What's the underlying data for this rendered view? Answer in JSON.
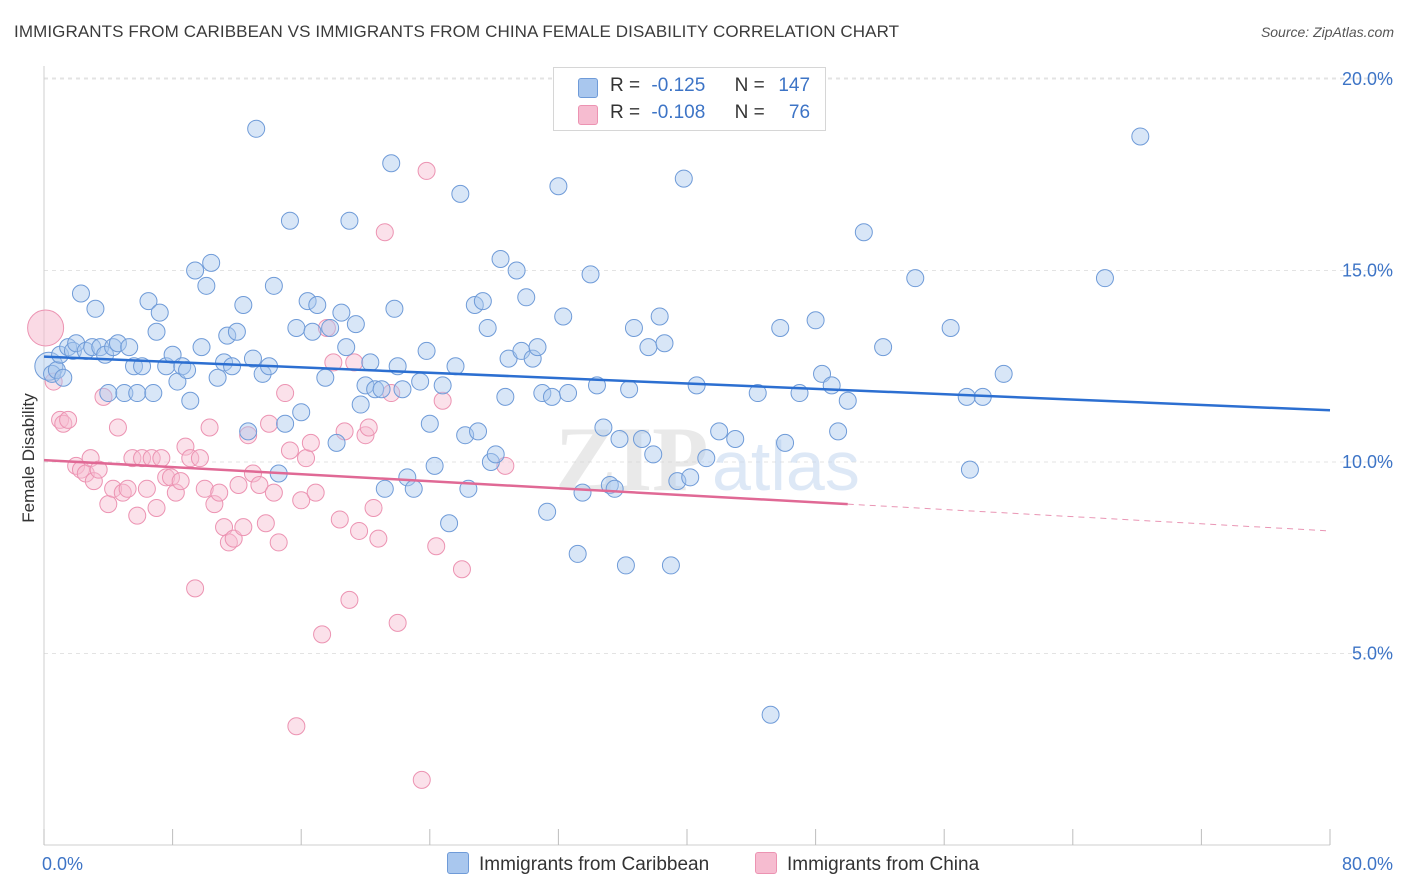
{
  "title": "IMMIGRANTS FROM CARIBBEAN VS IMMIGRANTS FROM CHINA FEMALE DISABILITY CORRELATION CHART",
  "source": "Source: ZipAtlas.com",
  "watermark": {
    "zip": "ZIP",
    "atlas": "atlas"
  },
  "legend": {
    "rows": [
      {
        "r_label": "R =",
        "r_value": "-0.125",
        "n_label": "N =",
        "n_value": "147"
      },
      {
        "r_label": "R =",
        "r_value": "-0.108",
        "n_label": "N =",
        "n_value": "76"
      }
    ]
  },
  "colors": {
    "caribbean_fill": "#a9c7ee",
    "caribbean_stroke": "#6f9bd8",
    "caribbean_line": "#2c6fd1",
    "china_fill": "#f6bcd0",
    "china_stroke": "#ec93b2",
    "china_line": "#e06995",
    "grid": "#e3e3e3",
    "tick_text": "#3d74c6"
  },
  "chart_data": {
    "type": "scatter",
    "title": "IMMIGRANTS FROM CARIBBEAN VS IMMIGRANTS FROM CHINA FEMALE DISABILITY CORRELATION CHART",
    "xlabel": "",
    "ylabel": "Female Disability",
    "xlim": [
      0,
      80
    ],
    "ylim": [
      0,
      21
    ],
    "x_tick_labels": [
      "0.0%",
      "80.0%"
    ],
    "y_ticks": [
      5,
      10,
      15,
      20
    ],
    "y_tick_labels": [
      "5.0%",
      "10.0%",
      "15.0%",
      "20.0%"
    ],
    "grid": true,
    "legend_position": "top-center",
    "series": [
      {
        "name": "Immigrants from Caribbean",
        "r": -0.125,
        "n": 147,
        "trend": {
          "x": [
            0,
            80
          ],
          "y": [
            12.75,
            11.35
          ]
        },
        "points": [
          [
            0.3,
            12.5
          ],
          [
            0.5,
            12.3
          ],
          [
            0.8,
            12.4
          ],
          [
            1.0,
            12.8
          ],
          [
            1.2,
            12.2
          ],
          [
            1.5,
            13.0
          ],
          [
            1.8,
            12.9
          ],
          [
            2.0,
            13.1
          ],
          [
            2.3,
            14.4
          ],
          [
            2.6,
            12.9
          ],
          [
            3.0,
            13.0
          ],
          [
            3.2,
            14.0
          ],
          [
            3.5,
            13.0
          ],
          [
            3.8,
            12.8
          ],
          [
            4.0,
            11.8
          ],
          [
            4.3,
            13.0
          ],
          [
            4.6,
            13.1
          ],
          [
            5.0,
            11.8
          ],
          [
            5.3,
            13.0
          ],
          [
            5.6,
            12.5
          ],
          [
            5.8,
            11.8
          ],
          [
            6.1,
            12.5
          ],
          [
            6.5,
            14.2
          ],
          [
            6.8,
            11.8
          ],
          [
            7.0,
            13.4
          ],
          [
            7.2,
            13.9
          ],
          [
            7.6,
            12.5
          ],
          [
            8.0,
            12.8
          ],
          [
            8.3,
            12.1
          ],
          [
            8.6,
            12.5
          ],
          [
            8.9,
            12.4
          ],
          [
            9.1,
            11.6
          ],
          [
            9.4,
            15.0
          ],
          [
            9.8,
            13.0
          ],
          [
            10.1,
            14.6
          ],
          [
            10.4,
            15.2
          ],
          [
            10.8,
            12.2
          ],
          [
            11.2,
            12.6
          ],
          [
            11.4,
            13.3
          ],
          [
            11.7,
            12.5
          ],
          [
            12.0,
            13.4
          ],
          [
            12.4,
            14.1
          ],
          [
            12.7,
            10.8
          ],
          [
            13.0,
            12.7
          ],
          [
            13.2,
            18.7
          ],
          [
            13.6,
            12.3
          ],
          [
            14.0,
            12.5
          ],
          [
            14.3,
            14.6
          ],
          [
            14.6,
            9.7
          ],
          [
            15.0,
            11.0
          ],
          [
            15.3,
            16.3
          ],
          [
            15.7,
            13.5
          ],
          [
            16.0,
            11.3
          ],
          [
            16.4,
            14.2
          ],
          [
            16.7,
            13.4
          ],
          [
            17.0,
            14.1
          ],
          [
            17.5,
            12.2
          ],
          [
            17.8,
            13.5
          ],
          [
            18.2,
            10.5
          ],
          [
            18.5,
            13.9
          ],
          [
            18.8,
            13.0
          ],
          [
            19.0,
            16.3
          ],
          [
            19.4,
            13.6
          ],
          [
            19.7,
            11.5
          ],
          [
            20.0,
            12.0
          ],
          [
            20.3,
            12.6
          ],
          [
            20.6,
            11.9
          ],
          [
            21.0,
            11.9
          ],
          [
            21.2,
            9.3
          ],
          [
            21.6,
            17.8
          ],
          [
            21.8,
            14.0
          ],
          [
            22.0,
            12.5
          ],
          [
            22.3,
            11.9
          ],
          [
            22.6,
            9.6
          ],
          [
            23.0,
            9.3
          ],
          [
            23.4,
            12.1
          ],
          [
            23.8,
            12.9
          ],
          [
            24.0,
            11.0
          ],
          [
            24.3,
            9.9
          ],
          [
            24.8,
            12.0
          ],
          [
            25.2,
            8.4
          ],
          [
            25.6,
            12.5
          ],
          [
            25.9,
            17.0
          ],
          [
            26.2,
            10.7
          ],
          [
            26.4,
            9.3
          ],
          [
            26.8,
            14.1
          ],
          [
            27.0,
            10.8
          ],
          [
            27.3,
            14.2
          ],
          [
            27.6,
            13.5
          ],
          [
            27.8,
            10.0
          ],
          [
            28.1,
            10.2
          ],
          [
            28.4,
            15.3
          ],
          [
            28.7,
            11.7
          ],
          [
            28.9,
            12.7
          ],
          [
            29.4,
            15.0
          ],
          [
            29.7,
            12.9
          ],
          [
            30.0,
            14.3
          ],
          [
            30.4,
            12.7
          ],
          [
            30.7,
            13.0
          ],
          [
            31.0,
            11.8
          ],
          [
            31.3,
            8.7
          ],
          [
            31.6,
            11.7
          ],
          [
            32.0,
            17.2
          ],
          [
            32.3,
            13.8
          ],
          [
            32.6,
            11.8
          ],
          [
            33.2,
            7.6
          ],
          [
            33.5,
            9.2
          ],
          [
            34.0,
            14.9
          ],
          [
            34.4,
            12.0
          ],
          [
            34.8,
            10.9
          ],
          [
            35.2,
            9.4
          ],
          [
            35.5,
            9.3
          ],
          [
            35.8,
            10.6
          ],
          [
            36.2,
            7.3
          ],
          [
            36.4,
            11.9
          ],
          [
            36.7,
            13.5
          ],
          [
            37.2,
            10.6
          ],
          [
            37.6,
            13.0
          ],
          [
            37.9,
            10.2
          ],
          [
            38.3,
            13.8
          ],
          [
            38.6,
            13.1
          ],
          [
            39.0,
            7.3
          ],
          [
            39.4,
            9.5
          ],
          [
            39.8,
            17.4
          ],
          [
            40.2,
            9.6
          ],
          [
            40.6,
            12.0
          ],
          [
            41.2,
            10.1
          ],
          [
            42.0,
            10.8
          ],
          [
            43.0,
            10.6
          ],
          [
            44.4,
            11.8
          ],
          [
            45.2,
            3.4
          ],
          [
            45.8,
            13.5
          ],
          [
            46.1,
            10.5
          ],
          [
            47.0,
            11.8
          ],
          [
            48.0,
            13.7
          ],
          [
            48.4,
            12.3
          ],
          [
            49.0,
            12.0
          ],
          [
            49.4,
            10.8
          ],
          [
            50.0,
            11.6
          ],
          [
            51.0,
            16.0
          ],
          [
            52.2,
            13.0
          ],
          [
            54.2,
            14.8
          ],
          [
            56.4,
            13.5
          ],
          [
            57.4,
            11.7
          ],
          [
            57.6,
            9.8
          ],
          [
            58.4,
            11.7
          ],
          [
            59.7,
            12.3
          ],
          [
            66.0,
            14.8
          ],
          [
            68.2,
            18.5
          ]
        ]
      },
      {
        "name": "Immigrants from China",
        "r": -0.108,
        "n": 76,
        "trend": {
          "x": [
            0,
            50
          ],
          "y": [
            10.05,
            8.9
          ]
        },
        "trend_dashed": {
          "x": [
            50,
            80
          ],
          "y": [
            8.9,
            8.2
          ]
        },
        "points": [
          [
            0.1,
            13.5
          ],
          [
            0.6,
            12.1
          ],
          [
            1.0,
            11.1
          ],
          [
            1.2,
            11.0
          ],
          [
            1.5,
            11.1
          ],
          [
            2.0,
            9.9
          ],
          [
            2.3,
            9.8
          ],
          [
            2.6,
            9.7
          ],
          [
            2.9,
            10.1
          ],
          [
            3.1,
            9.5
          ],
          [
            3.4,
            9.8
          ],
          [
            3.7,
            11.7
          ],
          [
            4.0,
            8.9
          ],
          [
            4.3,
            9.3
          ],
          [
            4.6,
            10.9
          ],
          [
            4.9,
            9.2
          ],
          [
            5.2,
            9.3
          ],
          [
            5.5,
            10.1
          ],
          [
            5.8,
            8.6
          ],
          [
            6.1,
            10.1
          ],
          [
            6.4,
            9.3
          ],
          [
            6.7,
            10.1
          ],
          [
            7.0,
            8.8
          ],
          [
            7.3,
            10.1
          ],
          [
            7.6,
            9.6
          ],
          [
            7.9,
            9.6
          ],
          [
            8.2,
            9.2
          ],
          [
            8.5,
            9.5
          ],
          [
            8.8,
            10.4
          ],
          [
            9.1,
            10.1
          ],
          [
            9.4,
            6.7
          ],
          [
            9.7,
            10.1
          ],
          [
            10.0,
            9.3
          ],
          [
            10.3,
            10.9
          ],
          [
            10.6,
            8.9
          ],
          [
            10.9,
            9.2
          ],
          [
            11.2,
            8.3
          ],
          [
            11.5,
            7.9
          ],
          [
            11.8,
            8.0
          ],
          [
            12.1,
            9.4
          ],
          [
            12.4,
            8.3
          ],
          [
            12.7,
            10.7
          ],
          [
            13.0,
            9.7
          ],
          [
            13.4,
            9.4
          ],
          [
            13.8,
            8.4
          ],
          [
            14.0,
            11.0
          ],
          [
            14.3,
            9.2
          ],
          [
            14.6,
            7.9
          ],
          [
            15.0,
            11.8
          ],
          [
            15.3,
            10.3
          ],
          [
            15.7,
            3.1
          ],
          [
            16.0,
            9.0
          ],
          [
            16.3,
            10.1
          ],
          [
            16.6,
            10.5
          ],
          [
            16.9,
            9.2
          ],
          [
            17.3,
            5.5
          ],
          [
            17.6,
            13.5
          ],
          [
            18.0,
            12.6
          ],
          [
            18.4,
            8.5
          ],
          [
            18.7,
            10.8
          ],
          [
            19.0,
            6.4
          ],
          [
            19.3,
            12.6
          ],
          [
            19.6,
            8.2
          ],
          [
            20.0,
            10.7
          ],
          [
            20.2,
            10.9
          ],
          [
            20.5,
            8.8
          ],
          [
            20.8,
            8.0
          ],
          [
            21.2,
            16.0
          ],
          [
            21.6,
            11.8
          ],
          [
            22.0,
            5.8
          ],
          [
            23.5,
            1.7
          ],
          [
            23.8,
            17.6
          ],
          [
            24.4,
            7.8
          ],
          [
            24.8,
            11.6
          ],
          [
            26.0,
            7.2
          ],
          [
            28.7,
            9.9
          ]
        ]
      }
    ]
  },
  "axis": {
    "ylabel": "Female Disability",
    "x_min_label": "0.0%",
    "x_max_label": "80.0%"
  },
  "bottom_legend": {
    "caribbean": "Immigrants from Caribbean",
    "china": "Immigrants from China"
  }
}
